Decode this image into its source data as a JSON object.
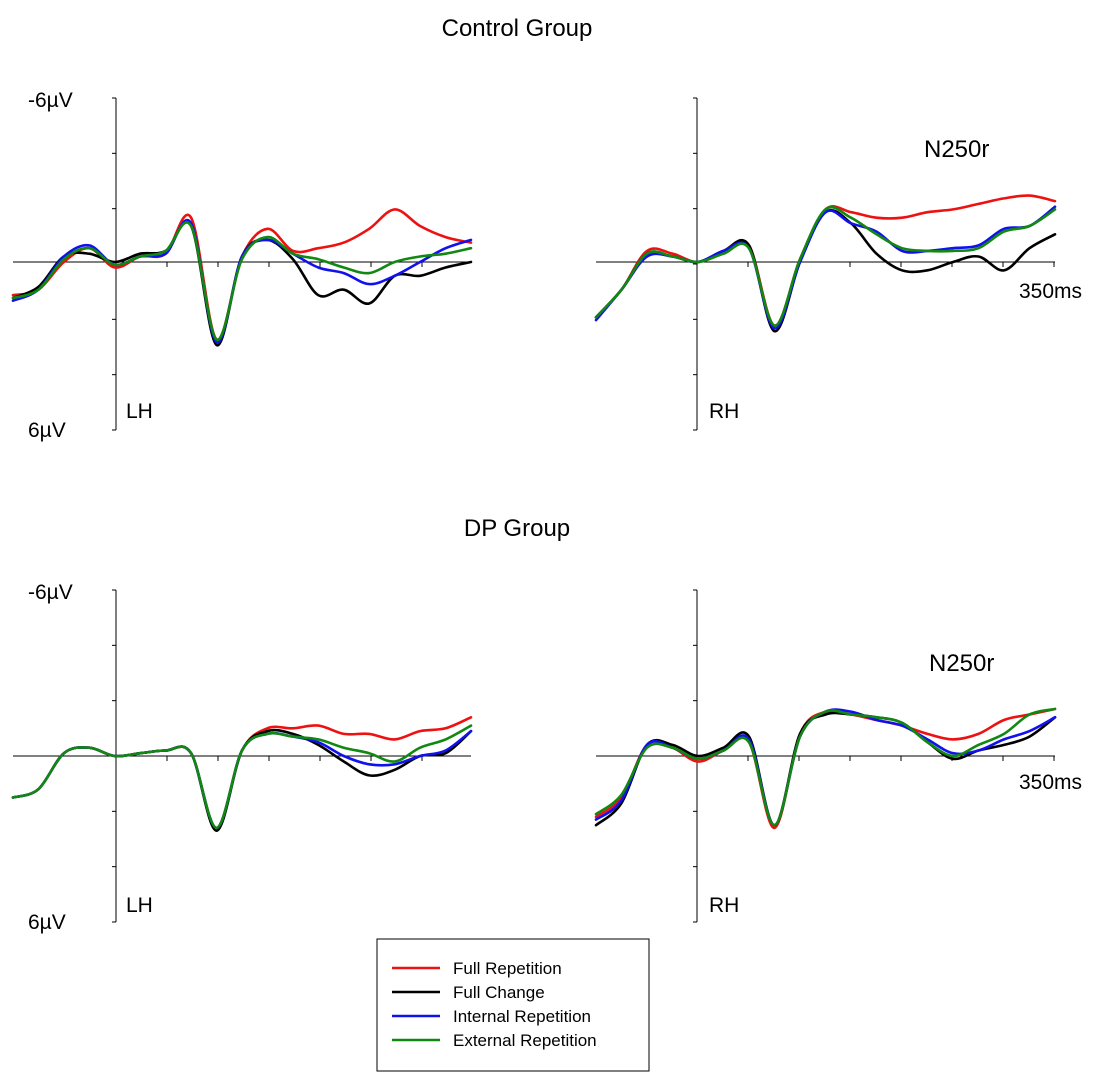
{
  "chart_data": {
    "type": "line",
    "x_unit": "ms",
    "x_end_label": "350ms",
    "y_top_label": "-6µV",
    "y_bottom_label": "6µV",
    "y_inverted": true,
    "ylim": [
      -6,
      6
    ],
    "grid": false,
    "legend_position": "bottom-center",
    "legend": [
      {
        "name": "Full Repetition",
        "color": "#ee1111"
      },
      {
        "name": "Full Change",
        "color": "#000000"
      },
      {
        "name": "Internal Repetition",
        "color": "#1111ee"
      },
      {
        "name": "External Repetition",
        "color": "#118811"
      }
    ],
    "x": [
      -100,
      -75,
      -50,
      -25,
      0,
      25,
      50,
      75,
      100,
      125,
      150,
      175,
      200,
      225,
      250,
      275,
      300,
      325,
      350
    ],
    "groups": [
      {
        "title": "Control Group",
        "annotation": "N250r",
        "annotation_panel": "RH",
        "panels": [
          {
            "label": "LH",
            "series": [
              {
                "name": "Full Repetition",
                "values": [
                  1.2,
                  1.0,
                  0.0,
                  -0.5,
                  0.2,
                  -0.2,
                  -0.3,
                  -1.6,
                  2.8,
                  -0.2,
                  -1.2,
                  -0.4,
                  -0.5,
                  -0.7,
                  -1.2,
                  -1.9,
                  -1.3,
                  -0.9,
                  -0.7
                ]
              },
              {
                "name": "Full Change",
                "values": [
                  1.3,
                  0.9,
                  -0.2,
                  -0.3,
                  0.0,
                  -0.3,
                  -0.4,
                  -1.3,
                  3.0,
                  -0.2,
                  -0.8,
                  -0.1,
                  1.2,
                  1.0,
                  1.5,
                  0.5,
                  0.5,
                  0.2,
                  0.0
                ]
              },
              {
                "name": "Internal Repetition",
                "values": [
                  1.4,
                  1.0,
                  -0.2,
                  -0.6,
                  0.1,
                  -0.2,
                  -0.3,
                  -1.4,
                  2.9,
                  -0.2,
                  -0.8,
                  -0.3,
                  0.2,
                  0.4,
                  0.8,
                  0.5,
                  0.0,
                  -0.5,
                  -0.8
                ]
              },
              {
                "name": "External Repetition",
                "values": [
                  1.3,
                  1.0,
                  -0.1,
                  -0.5,
                  0.1,
                  -0.2,
                  -0.4,
                  -1.3,
                  2.8,
                  -0.1,
                  -0.9,
                  -0.3,
                  -0.1,
                  0.2,
                  0.4,
                  0.0,
                  -0.2,
                  -0.3,
                  -0.5
                ]
              }
            ]
          },
          {
            "label": "RH",
            "series": [
              {
                "name": "Full Repetition",
                "values": [
                  2.0,
                  1.0,
                  -0.4,
                  -0.3,
                  0.0,
                  -0.4,
                  -0.6,
                  2.3,
                  -0.1,
                  -1.9,
                  -1.8,
                  -1.6,
                  -1.6,
                  -1.8,
                  -1.9,
                  -2.1,
                  -2.3,
                  -2.4,
                  -2.2
                ]
              },
              {
                "name": "Full Change",
                "values": [
                  2.0,
                  1.0,
                  -0.3,
                  -0.2,
                  0.0,
                  -0.4,
                  -0.6,
                  2.5,
                  0.0,
                  -1.8,
                  -1.4,
                  -0.3,
                  0.3,
                  0.3,
                  0.0,
                  -0.2,
                  0.3,
                  -0.5,
                  -1.0
                ]
              },
              {
                "name": "Internal Repetition",
                "values": [
                  2.1,
                  1.0,
                  -0.2,
                  -0.2,
                  0.0,
                  -0.4,
                  -0.5,
                  2.4,
                  0.0,
                  -1.8,
                  -1.4,
                  -1.1,
                  -0.4,
                  -0.4,
                  -0.5,
                  -0.6,
                  -1.2,
                  -1.3,
                  -2.0
                ]
              },
              {
                "name": "External Repetition",
                "values": [
                  2.0,
                  1.0,
                  -0.3,
                  -0.2,
                  0.0,
                  -0.3,
                  -0.5,
                  2.3,
                  -0.1,
                  -1.9,
                  -1.6,
                  -1.0,
                  -0.5,
                  -0.4,
                  -0.4,
                  -0.5,
                  -1.1,
                  -1.3,
                  -1.9
                ]
              }
            ]
          }
        ]
      },
      {
        "title": "DP Group",
        "annotation": "N250r",
        "annotation_panel": "RH",
        "panels": [
          {
            "label": "LH",
            "series": [
              {
                "name": "Full Repetition",
                "values": [
                  1.5,
                  1.2,
                  -0.1,
                  -0.3,
                  0.0,
                  -0.1,
                  -0.2,
                  -0.1,
                  2.6,
                  -0.2,
                  -1.0,
                  -1.0,
                  -1.1,
                  -0.8,
                  -0.8,
                  -0.6,
                  -0.9,
                  -1.0,
                  -1.4
                ]
              },
              {
                "name": "Full Change",
                "values": [
                  1.5,
                  1.2,
                  -0.1,
                  -0.3,
                  0.0,
                  -0.1,
                  -0.2,
                  -0.1,
                  2.7,
                  -0.2,
                  -0.9,
                  -0.8,
                  -0.4,
                  0.2,
                  0.7,
                  0.5,
                  0.0,
                  -0.1,
                  -0.9
                ]
              },
              {
                "name": "Internal Repetition",
                "values": [
                  1.5,
                  1.2,
                  -0.1,
                  -0.3,
                  0.0,
                  -0.1,
                  -0.2,
                  -0.1,
                  2.6,
                  -0.2,
                  -0.8,
                  -0.7,
                  -0.5,
                  0.0,
                  0.3,
                  0.3,
                  0.0,
                  -0.2,
                  -0.9
                ]
              },
              {
                "name": "External Repetition",
                "values": [
                  1.5,
                  1.2,
                  -0.1,
                  -0.3,
                  0.0,
                  -0.1,
                  -0.2,
                  -0.1,
                  2.6,
                  -0.2,
                  -0.8,
                  -0.7,
                  -0.6,
                  -0.3,
                  -0.1,
                  0.2,
                  -0.3,
                  -0.6,
                  -1.1
                ]
              }
            ]
          },
          {
            "label": "RH",
            "series": [
              {
                "name": "Full Repetition",
                "values": [
                  2.2,
                  1.5,
                  -0.4,
                  -0.3,
                  0.2,
                  -0.2,
                  -0.5,
                  2.6,
                  -0.8,
                  -1.6,
                  -1.5,
                  -1.3,
                  -1.1,
                  -0.8,
                  -0.6,
                  -0.8,
                  -1.3,
                  -1.5,
                  -1.7
                ]
              },
              {
                "name": "Full Change",
                "values": [
                  2.5,
                  1.7,
                  -0.4,
                  -0.4,
                  0.0,
                  -0.3,
                  -0.7,
                  2.5,
                  -0.8,
                  -1.5,
                  -1.5,
                  -1.4,
                  -1.2,
                  -0.5,
                  0.1,
                  -0.2,
                  -0.4,
                  -0.7,
                  -1.4
                ]
              },
              {
                "name": "Internal Repetition",
                "values": [
                  2.3,
                  1.6,
                  -0.4,
                  -0.3,
                  0.1,
                  -0.2,
                  -0.6,
                  2.5,
                  -0.7,
                  -1.6,
                  -1.6,
                  -1.3,
                  -1.1,
                  -0.6,
                  -0.1,
                  -0.2,
                  -0.6,
                  -0.9,
                  -1.4
                ]
              },
              {
                "name": "External Repetition",
                "values": [
                  2.1,
                  1.4,
                  -0.3,
                  -0.3,
                  0.1,
                  -0.2,
                  -0.5,
                  2.5,
                  -0.7,
                  -1.6,
                  -1.5,
                  -1.4,
                  -1.2,
                  -0.5,
                  0.0,
                  -0.4,
                  -0.8,
                  -1.5,
                  -1.7
                ]
              }
            ]
          }
        ]
      }
    ]
  }
}
